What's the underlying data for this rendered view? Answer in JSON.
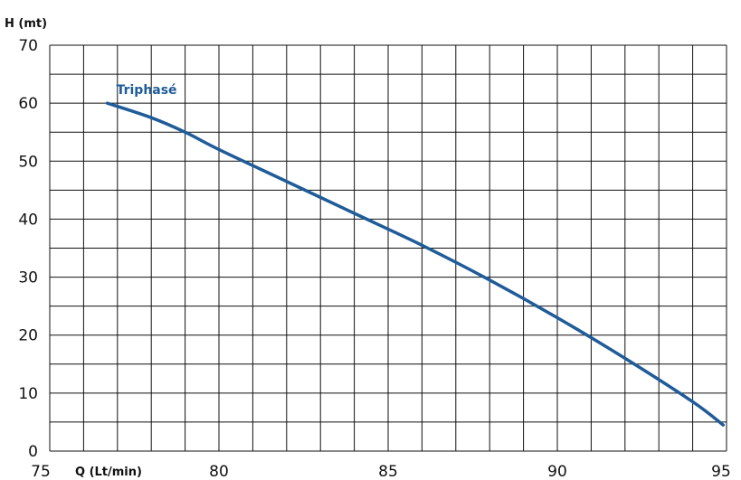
{
  "chart_data": {
    "type": "line",
    "ylabel": "H (mt)",
    "xlabel": "Q (Lt/min)",
    "xlim": [
      75,
      95
    ],
    "ylim": [
      0,
      70
    ],
    "x_ticks": [
      "75",
      "80",
      "85",
      "90",
      "95"
    ],
    "y_ticks": [
      "0",
      "10",
      "20",
      "30",
      "40",
      "50",
      "60",
      "70"
    ],
    "grid": true,
    "x_minor_step": 1,
    "y_minor_step": 5,
    "series": [
      {
        "name": "Triphasé",
        "color": "#1f5c99",
        "points": [
          [
            76.7,
            60
          ],
          [
            78.0,
            57.5
          ],
          [
            79.0,
            55
          ],
          [
            80.0,
            52
          ],
          [
            82.0,
            46.5
          ],
          [
            84.0,
            41
          ],
          [
            86.0,
            35.5
          ],
          [
            88.0,
            29.5
          ],
          [
            90.0,
            23
          ],
          [
            92.0,
            16
          ],
          [
            94.0,
            8.5
          ],
          [
            94.9,
            4.5
          ]
        ]
      }
    ]
  }
}
